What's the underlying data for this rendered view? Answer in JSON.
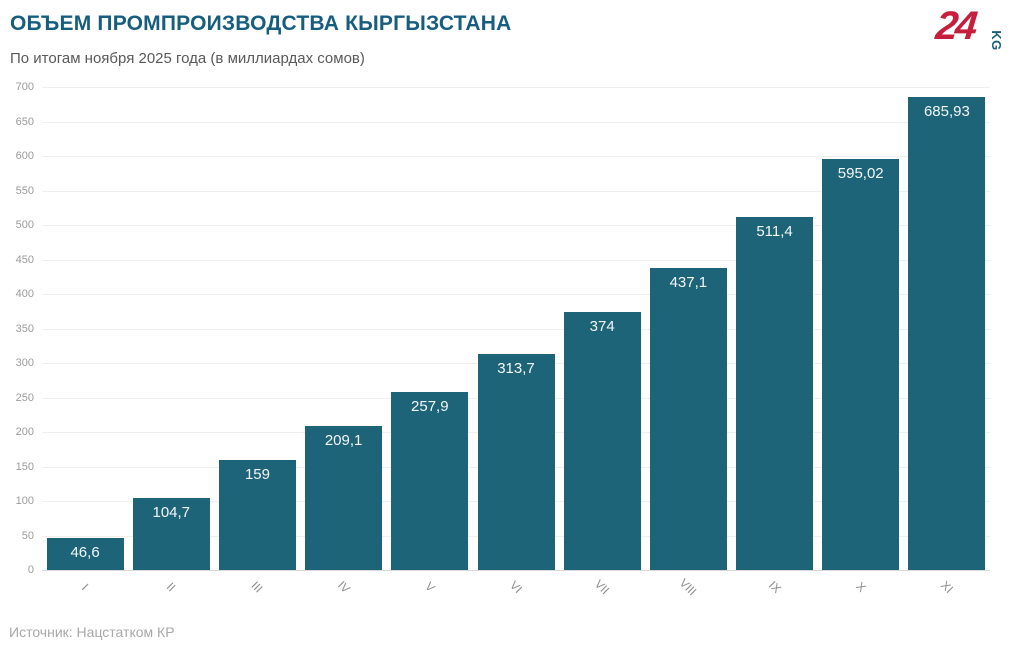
{
  "header": {
    "title": "ОБЪЕМ ПРОМПРОИЗВОДСТВА КЫРГЫЗСТАНА",
    "subtitle": "По итогам ноября 2025 года (в миллиардах сомов)"
  },
  "logo": {
    "number": "24",
    "suffix": "KG"
  },
  "footer": {
    "source": "Источник: Нацстатком КР"
  },
  "colors": {
    "bar": "#1e6478",
    "title": "#175e7e",
    "logo_red": "#c81e3e",
    "logo_teal": "#1b5e7a",
    "gridline": "#efefef",
    "axis_text": "#9b9b9b"
  },
  "chart_data": {
    "type": "bar",
    "title": "ОБЪЕМ ПРОМПРОИЗВОДСТВА КЫРГЫЗСТАНА",
    "subtitle": "По итогам ноября 2025 года (в миллиардах сомов)",
    "categories": [
      "I",
      "II",
      "III",
      "IV",
      "V",
      "VI",
      "VII",
      "VIII",
      "IX",
      "X",
      "XI"
    ],
    "values": [
      46.6,
      104.7,
      159,
      209.1,
      257.9,
      313.7,
      374,
      437.1,
      511.4,
      595.02,
      685.93
    ],
    "value_labels": [
      "46,6",
      "104,7",
      "159",
      "209,1",
      "257,9",
      "313,7",
      "374",
      "437,1",
      "511,4",
      "595,02",
      "685,93"
    ],
    "xlabel": "",
    "ylabel": "",
    "ylim": [
      0,
      700
    ],
    "ytick_step": 50,
    "grid": true,
    "legend_position": "none",
    "bar_color": "#1e6478"
  }
}
